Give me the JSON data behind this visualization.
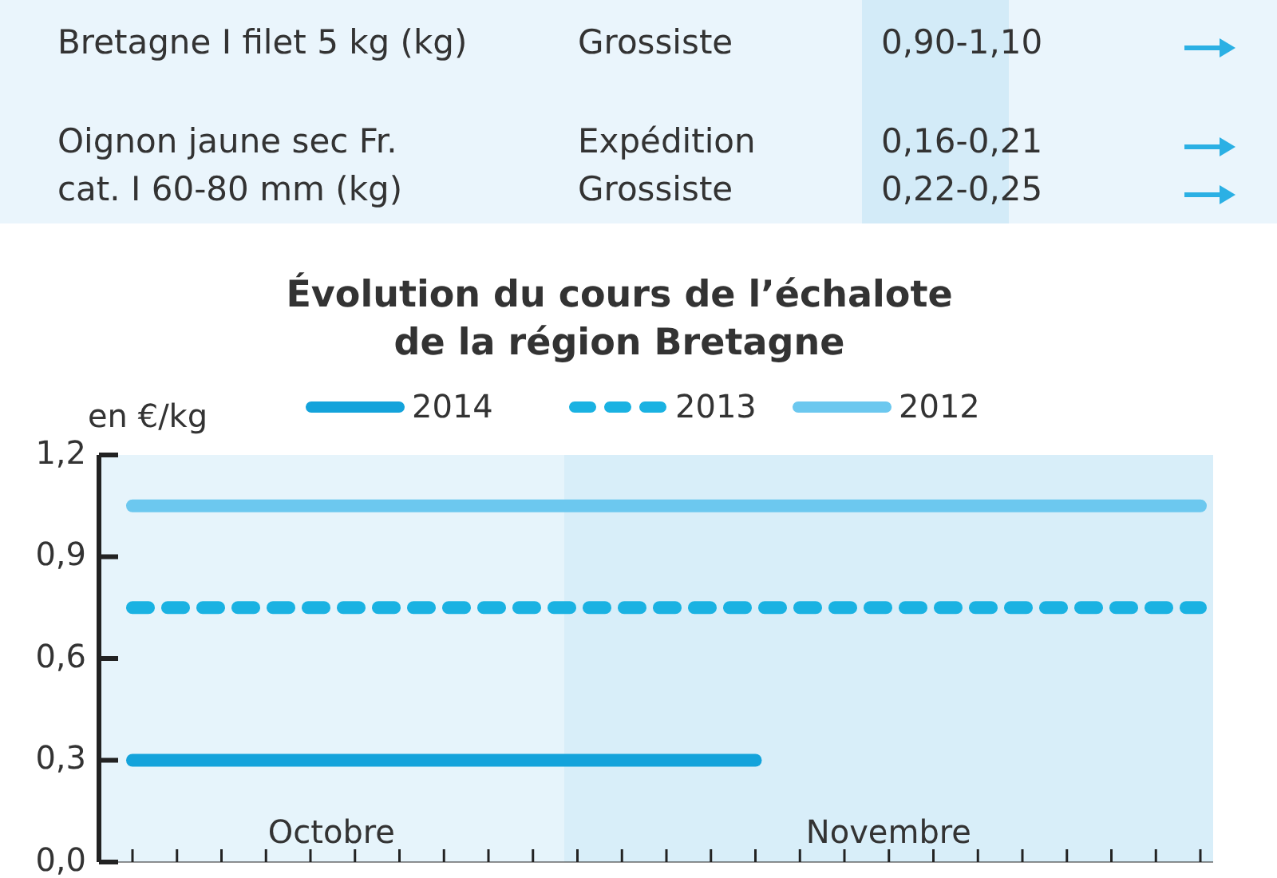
{
  "chart_data": [
    {
      "type": "other",
      "annotations": [
        "Bretagne I filet 5 kg (kg)",
        "Grossiste",
        "0,90-1,10",
        "Oignon jaune sec Fr.",
        "Expédition",
        "0,16-0,21",
        "cat. I 60-80 mm (kg)",
        "Grossiste",
        "0,22-0,25"
      ]
    },
    {
      "type": "line",
      "title": "Évolution du cours de l’échalote\nde la région Bretagne",
      "ylabel": "en €/kg",
      "categories": [
        null,
        null,
        null,
        null,
        null,
        null,
        null,
        null,
        null,
        null,
        null,
        null,
        null,
        null,
        null,
        null,
        null,
        null,
        null,
        null,
        null,
        null,
        null,
        null,
        null
      ],
      "ylim": [
        0,
        1.2
      ],
      "yticks": [
        {
          "value": 0,
          "label": "0,0"
        },
        {
          "value": 0.3,
          "label": "0,3"
        },
        {
          "value": 0.6,
          "label": "0,6"
        },
        {
          "value": 0.9,
          "label": "0,9"
        },
        {
          "value": 1.2,
          "label": "1,2"
        }
      ],
      "annotations": [
        "Octobre",
        "Novembre"
      ],
      "legend": "top",
      "tick_labels": "y",
      "series": [
        {
          "name": "2014",
          "color": "#14a3db",
          "line_style": "solid",
          "values": [
            0.3,
            0.3,
            0.3,
            0.3,
            0.3,
            0.3,
            0.3,
            0.3,
            0.3,
            0.3,
            0.3,
            0.3,
            0.3,
            0.3,
            0.3,
            null,
            null,
            null,
            null,
            null,
            null,
            null,
            null,
            null,
            null
          ]
        },
        {
          "name": "2013",
          "color": "#1ab2e2",
          "line_style": "dashed",
          "values": [
            0.75,
            0.75,
            0.75,
            0.75,
            0.75,
            0.75,
            0.75,
            0.75,
            0.75,
            0.75,
            0.75,
            0.75,
            0.75,
            0.75,
            0.75,
            0.75,
            0.75,
            0.75,
            0.75,
            0.75,
            0.75,
            0.75,
            0.75,
            0.75,
            0.75
          ]
        },
        {
          "name": "2012",
          "color": "#6cc8ef",
          "line_style": "solid",
          "values": [
            1.05,
            1.05,
            1.05,
            1.05,
            1.05,
            1.05,
            1.05,
            1.05,
            1.05,
            1.05,
            1.05,
            1.05,
            1.05,
            1.05,
            1.05,
            1.05,
            1.05,
            1.05,
            1.05,
            1.05,
            1.05,
            1.05,
            1.05,
            1.05,
            1.05
          ]
        }
      ]
    }
  ]
}
